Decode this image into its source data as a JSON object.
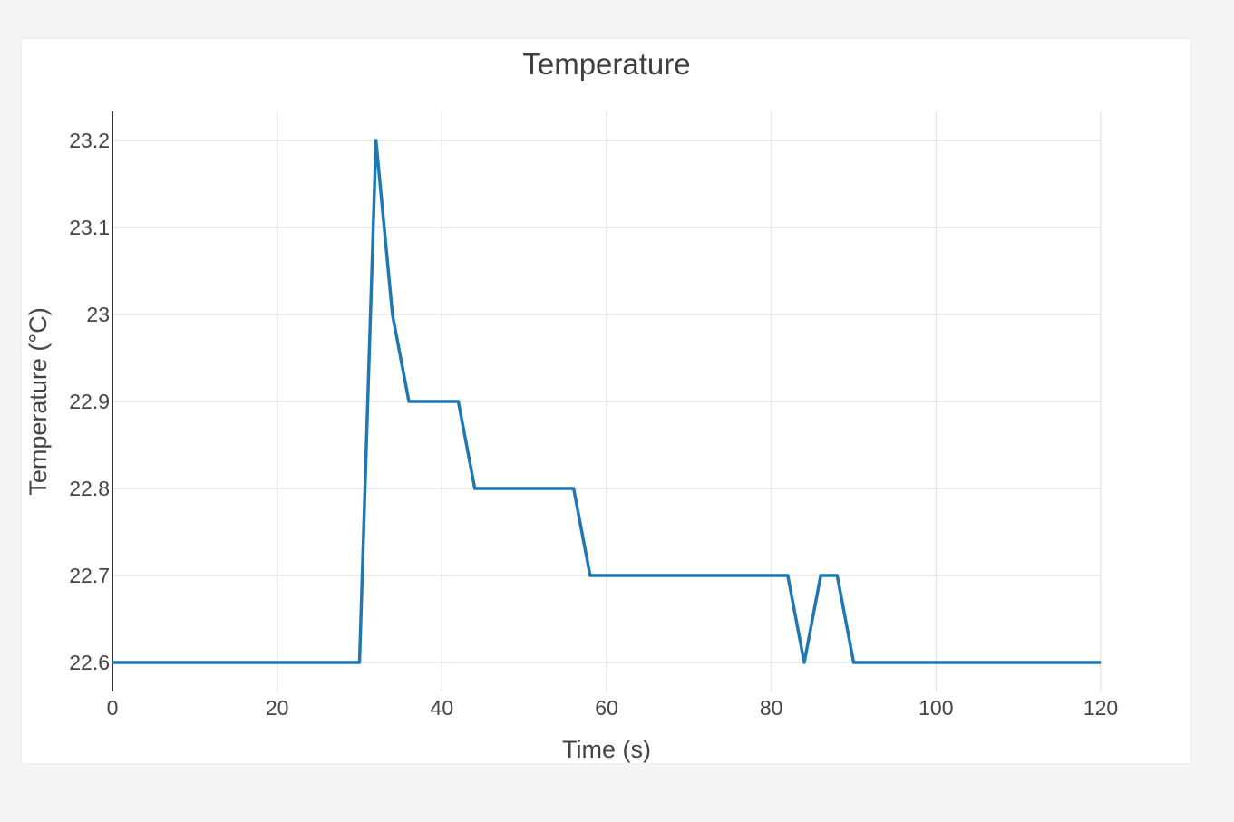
{
  "chart_data": {
    "type": "line",
    "title": "Temperature",
    "xlabel": "Time (s)",
    "ylabel": "Temperature (°C)",
    "xlim": [
      0,
      120
    ],
    "ylim": [
      22.6,
      23.2
    ],
    "xticks": [
      0,
      20,
      40,
      60,
      80,
      100,
      120
    ],
    "yticks": [
      22.6,
      22.7,
      22.8,
      22.9,
      23.0,
      23.1,
      23.2
    ],
    "ytick_labels": [
      "22.6",
      "22.7",
      "22.8",
      "22.9",
      "23",
      "23.1",
      "23.2"
    ],
    "grid": true,
    "series": [
      {
        "color": "#1f77b4",
        "x": [
          0,
          2,
          4,
          6,
          8,
          10,
          12,
          14,
          16,
          18,
          20,
          22,
          24,
          26,
          28,
          30,
          32,
          34,
          36,
          38,
          40,
          42,
          44,
          46,
          48,
          50,
          52,
          54,
          56,
          58,
          60,
          62,
          64,
          66,
          68,
          70,
          72,
          74,
          76,
          78,
          80,
          82,
          84,
          86,
          88,
          90,
          92,
          94,
          96,
          98,
          100,
          102,
          104,
          106,
          108,
          110,
          112,
          114,
          116,
          118,
          120
        ],
        "y": [
          22.6,
          22.6,
          22.6,
          22.6,
          22.6,
          22.6,
          22.6,
          22.6,
          22.6,
          22.6,
          22.6,
          22.6,
          22.6,
          22.6,
          22.6,
          22.6,
          23.2,
          23.0,
          22.9,
          22.9,
          22.9,
          22.9,
          22.8,
          22.8,
          22.8,
          22.8,
          22.8,
          22.8,
          22.8,
          22.7,
          22.7,
          22.7,
          22.7,
          22.7,
          22.7,
          22.7,
          22.7,
          22.7,
          22.7,
          22.7,
          22.7,
          22.7,
          22.6,
          22.7,
          22.7,
          22.6,
          22.6,
          22.6,
          22.6,
          22.6,
          22.6,
          22.6,
          22.6,
          22.6,
          22.6,
          22.6,
          22.6,
          22.6,
          22.6,
          22.6,
          22.6
        ]
      }
    ]
  }
}
